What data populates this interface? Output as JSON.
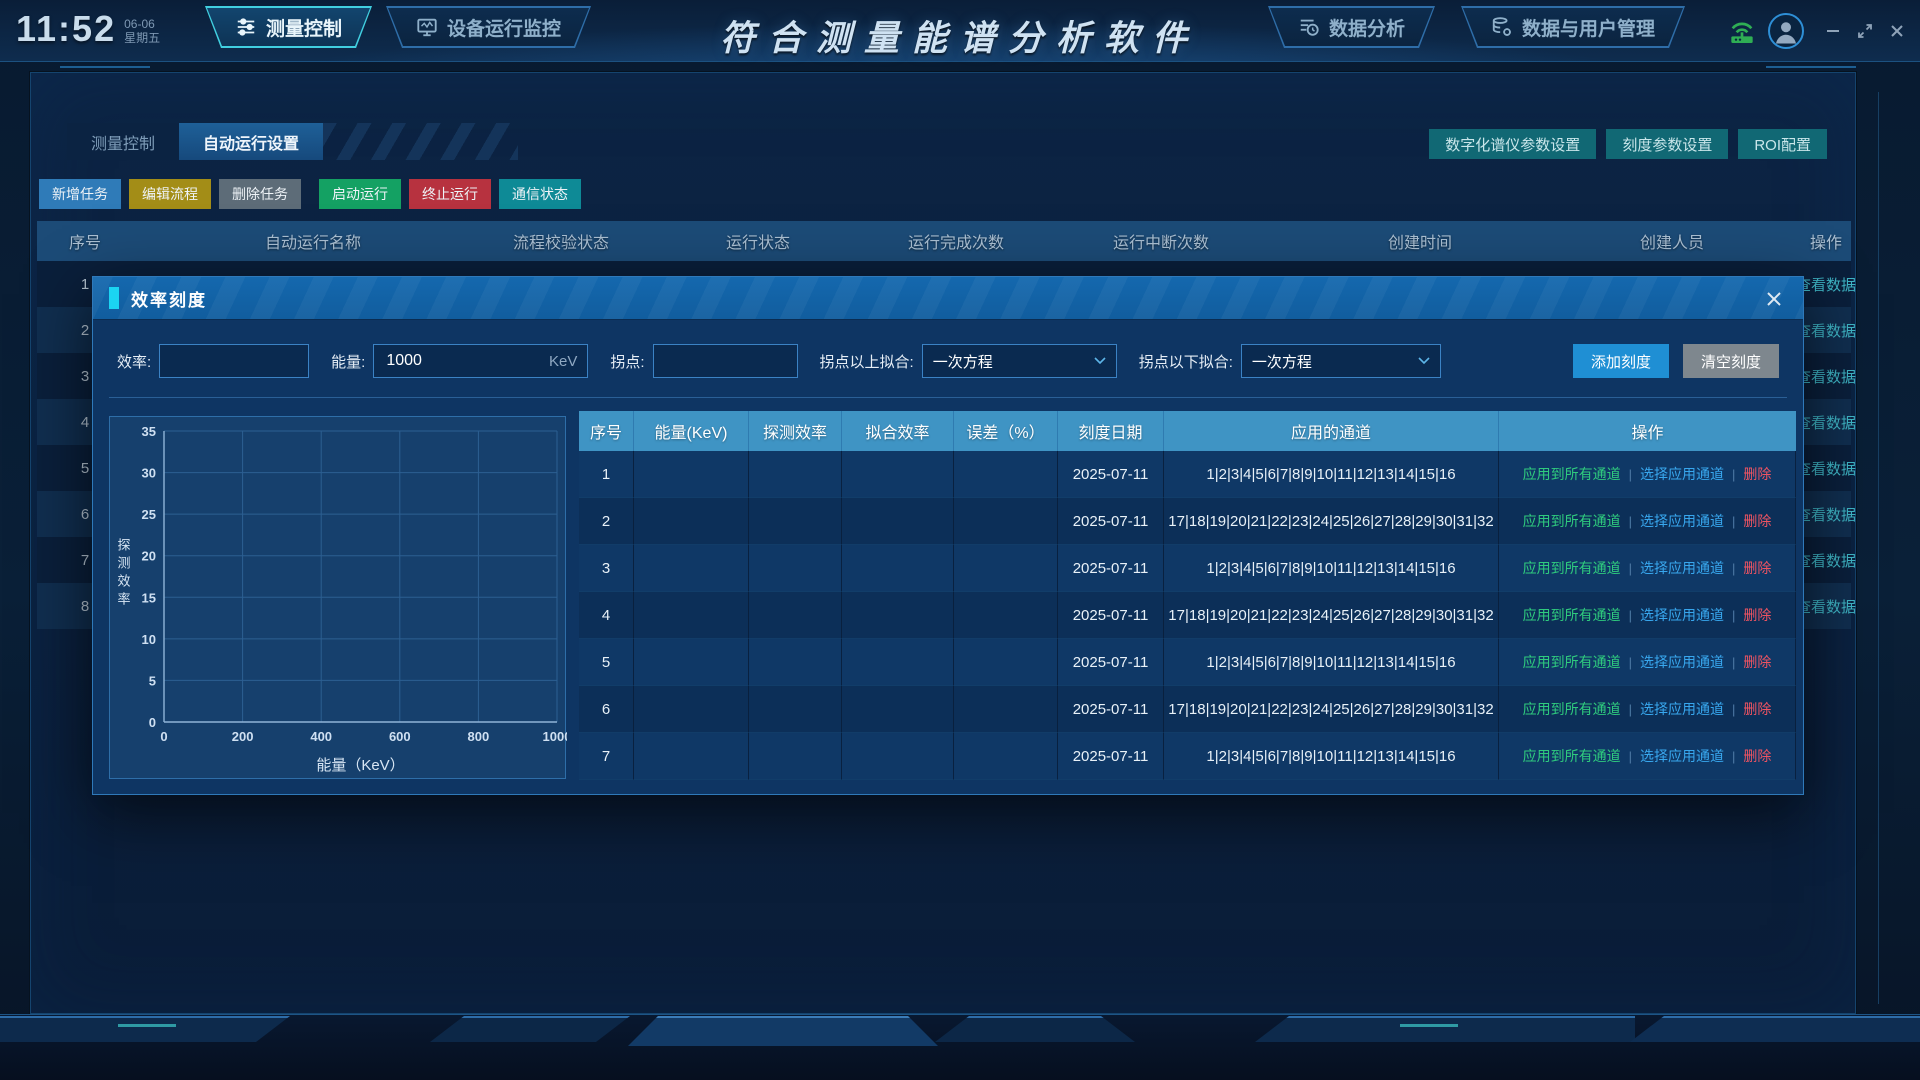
{
  "colors": {
    "accent_cyan": "#1bd4f2",
    "dialog_header_blue": "#1468ae",
    "table_header_light": "#3f94c4",
    "link_green": "#2fcb7e",
    "link_blue": "#38a7ee",
    "link_red": "#f05462",
    "view_data_teal": "#3fb6c6"
  },
  "header": {
    "time": "11:52",
    "date": "06-06",
    "weekday": "星期五",
    "title": "符合测量能谱分析软件",
    "nav": [
      {
        "label": "测量控制",
        "icon": "sliders-icon",
        "active": true
      },
      {
        "label": "设备运行监控",
        "icon": "monitor-icon",
        "active": false
      },
      {
        "label": "数据分析",
        "icon": "report-clock-icon",
        "active": false
      },
      {
        "label": "数据与用户管理",
        "icon": "database-gear-icon",
        "active": false
      }
    ],
    "status_icons": [
      {
        "name": "connection-icon"
      },
      {
        "name": "user-avatar"
      }
    ],
    "window_controls": [
      "minimize",
      "maximize",
      "close"
    ]
  },
  "subtabs": [
    {
      "label": "测量控制",
      "active": false
    },
    {
      "label": "自动运行设置",
      "active": true
    }
  ],
  "settings_buttons": [
    {
      "label": "数字化谱仪参数设置"
    },
    {
      "label": "刻度参数设置"
    },
    {
      "label": "ROI配置"
    }
  ],
  "toolbar": [
    {
      "label": "新增任务",
      "color": "#2f7bb8"
    },
    {
      "label": "编辑流程",
      "color": "#a38d17"
    },
    {
      "label": "删除任务",
      "color": "#5d6c78"
    },
    {
      "label": "启动运行",
      "color": "#14a163"
    },
    {
      "label": "终止运行",
      "color": "#b7323f"
    },
    {
      "label": "通信状态",
      "color": "#0e8a96"
    }
  ],
  "main_table": {
    "headers": [
      "序号",
      "自动运行名称",
      "流程校验状态",
      "运行状态",
      "运行完成次数",
      "运行中断次数",
      "创建时间",
      "创建人员",
      "操作"
    ],
    "rows": [
      {
        "seq": "1",
        "action": "查看数据"
      },
      {
        "seq": "2",
        "action": "查看数据"
      },
      {
        "seq": "3",
        "action": "查看数据"
      },
      {
        "seq": "4",
        "action": "查看数据"
      },
      {
        "seq": "5",
        "action": "查看数据"
      },
      {
        "seq": "6",
        "action": "查看数据"
      },
      {
        "seq": "7",
        "action": "查看数据"
      },
      {
        "seq": "8",
        "action": "查看数据"
      }
    ]
  },
  "dialog": {
    "title": "效率刻度",
    "form": {
      "efficiency_label": "效率:",
      "efficiency_value": "",
      "energy_label": "能量:",
      "energy_value": "1000",
      "energy_unit": "KeV",
      "inflection_label": "拐点:",
      "inflection_value": "",
      "fit_above_label": "拐点以上拟合:",
      "fit_above_value": "一次方程",
      "fit_below_label": "拐点以下拟合:",
      "fit_below_value": "一次方程",
      "add_button": "添加刻度",
      "clear_button": "清空刻度"
    },
    "table": {
      "headers": [
        "序号",
        "能量(KeV)",
        "探测效率",
        "拟合效率",
        "误差（%）",
        "刻度日期",
        "应用的通道",
        "操作"
      ],
      "action_labels": [
        "应用到所有通道",
        "选择应用通道",
        "删除"
      ],
      "action_separator": "|",
      "rows": [
        {
          "seq": "1",
          "energy": "",
          "detect": "",
          "fit": "",
          "error": "",
          "date": "2025-07-11",
          "channels": "1|2|3|4|5|6|7|8|9|10|11|12|13|14|15|16"
        },
        {
          "seq": "2",
          "energy": "",
          "detect": "",
          "fit": "",
          "error": "",
          "date": "2025-07-11",
          "channels": "17|18|19|20|21|22|23|24|25|26|27|28|29|30|31|32"
        },
        {
          "seq": "3",
          "energy": "",
          "detect": "",
          "fit": "",
          "error": "",
          "date": "2025-07-11",
          "channels": "1|2|3|4|5|6|7|8|9|10|11|12|13|14|15|16"
        },
        {
          "seq": "4",
          "energy": "",
          "detect": "",
          "fit": "",
          "error": "",
          "date": "2025-07-11",
          "channels": "17|18|19|20|21|22|23|24|25|26|27|28|29|30|31|32"
        },
        {
          "seq": "5",
          "energy": "",
          "detect": "",
          "fit": "",
          "error": "",
          "date": "2025-07-11",
          "channels": "1|2|3|4|5|6|7|8|9|10|11|12|13|14|15|16"
        },
        {
          "seq": "6",
          "energy": "",
          "detect": "",
          "fit": "",
          "error": "",
          "date": "2025-07-11",
          "channels": "17|18|19|20|21|22|23|24|25|26|27|28|29|30|31|32"
        },
        {
          "seq": "7",
          "energy": "",
          "detect": "",
          "fit": "",
          "error": "",
          "date": "2025-07-11",
          "channels": "1|2|3|4|5|6|7|8|9|10|11|12|13|14|15|16"
        }
      ]
    }
  },
  "chart_data": {
    "type": "scatter",
    "title": "",
    "xlabel": "能量（KeV）",
    "ylabel": "探测效率",
    "xlim": [
      0,
      1000
    ],
    "ylim": [
      0,
      35
    ],
    "xticks": [
      0,
      200,
      400,
      600,
      800,
      1000
    ],
    "yticks": [
      0,
      5,
      10,
      15,
      20,
      25,
      30,
      35
    ],
    "grid": true,
    "points": []
  }
}
